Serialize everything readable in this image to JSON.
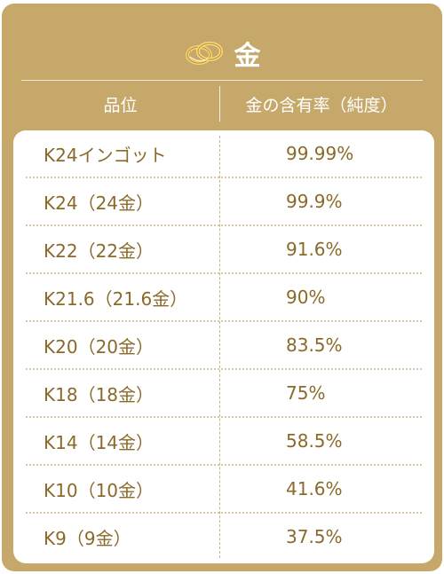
{
  "title": "金",
  "header": {
    "col1": "品位",
    "col2": "金の含有率（純度）"
  },
  "rows": [
    {
      "name": "K24インゴット",
      "value": "99.99%"
    },
    {
      "name": "K24（24金）",
      "value": "99.9%"
    },
    {
      "name": "K22（22金）",
      "value": "91.6%"
    },
    {
      "name": "K21.6（21.6金）",
      "value": "90%"
    },
    {
      "name": "K20（20金）",
      "value": "83.5%"
    },
    {
      "name": "K18（18金）",
      "value": "75%"
    },
    {
      "name": "K14（14金）",
      "value": "58.5%"
    },
    {
      "name": "K10（10金）",
      "value": "41.6%"
    },
    {
      "name": "K9（9金）",
      "value": "37.5%"
    }
  ],
  "colors": {
    "card": "#c6a86a",
    "text": "#8a6a2a",
    "ring_gold": "#e0b84a"
  },
  "icons": {
    "title": "gold-rings-icon"
  }
}
